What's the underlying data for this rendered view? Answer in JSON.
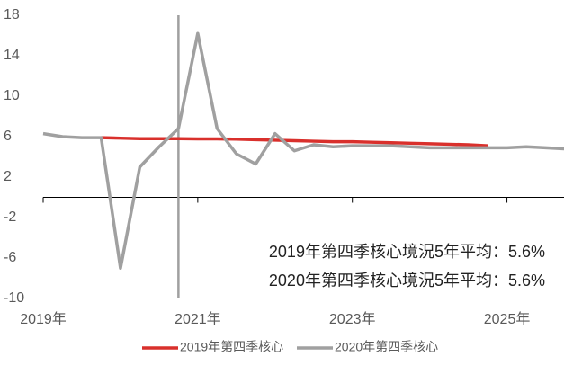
{
  "chart_data": {
    "type": "line",
    "x": [
      2019,
      2019.25,
      2019.5,
      2019.75,
      2020,
      2020.25,
      2020.5,
      2020.75,
      2021,
      2021.25,
      2021.5,
      2021.75,
      2022,
      2022.25,
      2022.5,
      2022.75,
      2023,
      2023.25,
      2023.5,
      2023.75,
      2024,
      2024.25,
      2024.5,
      2024.75,
      2025,
      2025.25,
      2025.5,
      2025.75
    ],
    "series": [
      {
        "name": "2019年第四季核心",
        "color": "#d9302c",
        "values": [
          null,
          null,
          null,
          5.9,
          5.85,
          5.8,
          5.8,
          5.8,
          5.78,
          5.78,
          5.75,
          5.7,
          5.65,
          5.6,
          5.55,
          5.5,
          5.5,
          5.45,
          5.4,
          5.35,
          5.3,
          5.25,
          5.2,
          5.1,
          null,
          null,
          null,
          null
        ]
      },
      {
        "name": "2020年第四季核心",
        "color": "#a0a0a0",
        "values": [
          6.3,
          6.0,
          5.9,
          5.9,
          -7,
          3.0,
          5.0,
          6.8,
          16.2,
          6.8,
          4.3,
          3.3,
          6.3,
          4.6,
          5.2,
          5.0,
          5.1,
          5.1,
          5.1,
          5.0,
          4.9,
          4.9,
          4.9,
          4.9,
          4.9,
          5.0,
          4.9,
          4.8
        ]
      }
    ],
    "xlim": [
      2019,
      2025.75
    ],
    "xticks": [
      {
        "value": 2019,
        "label": "2019年"
      },
      {
        "value": 2021,
        "label": "2021年"
      },
      {
        "value": 2023,
        "label": "2023年"
      },
      {
        "value": 2025,
        "label": "2025年"
      }
    ],
    "ylim": [
      -10,
      18
    ],
    "yticks": [
      18,
      14,
      10,
      6,
      2,
      -2,
      -6,
      -10
    ],
    "vline": 2020.75,
    "annotations": [
      "2019年第四季核心境況5年平均：5.6%",
      "2020年第四季核心境況5年平均：5.6%"
    ],
    "legend": "bottom"
  }
}
